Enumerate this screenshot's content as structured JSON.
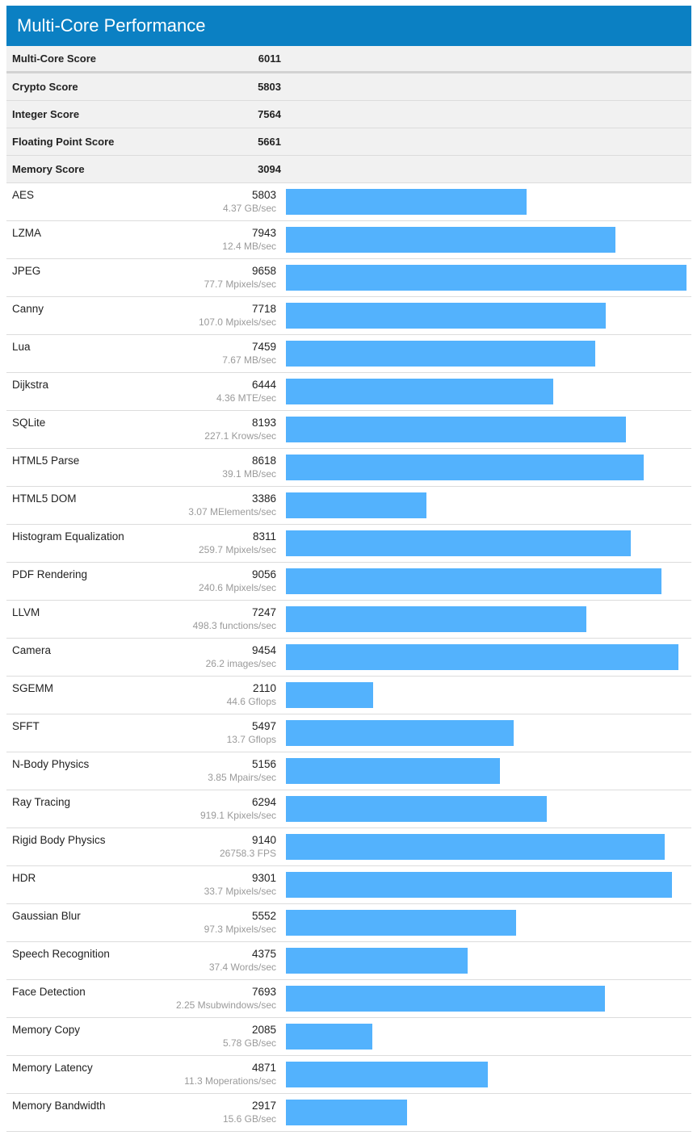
{
  "title": "Multi-Core Performance",
  "colors": {
    "header": "#0b80c3",
    "bar": "#53b2fd"
  },
  "summary": [
    {
      "label": "Multi-Core Score",
      "score": "6011"
    },
    {
      "label": "Crypto Score",
      "score": "5803"
    },
    {
      "label": "Integer Score",
      "score": "7564"
    },
    {
      "label": "Floating Point Score",
      "score": "5661"
    },
    {
      "label": "Memory Score",
      "score": "3094"
    }
  ],
  "chart_data": {
    "type": "bar",
    "max_value": 9658,
    "categories": [
      "AES",
      "LZMA",
      "JPEG",
      "Canny",
      "Lua",
      "Dijkstra",
      "SQLite",
      "HTML5 Parse",
      "HTML5 DOM",
      "Histogram Equalization",
      "PDF Rendering",
      "LLVM",
      "Camera",
      "SGEMM",
      "SFFT",
      "N-Body Physics",
      "Ray Tracing",
      "Rigid Body Physics",
      "HDR",
      "Gaussian Blur",
      "Speech Recognition",
      "Face Detection",
      "Memory Copy",
      "Memory Latency",
      "Memory Bandwidth"
    ],
    "values": [
      5803,
      7943,
      9658,
      7718,
      7459,
      6444,
      8193,
      8618,
      3386,
      8311,
      9056,
      7247,
      9454,
      2110,
      5497,
      5156,
      6294,
      9140,
      9301,
      5552,
      4375,
      7693,
      2085,
      4871,
      2917
    ],
    "rates": [
      "4.37 GB/sec",
      "12.4 MB/sec",
      "77.7 Mpixels/sec",
      "107.0 Mpixels/sec",
      "7.67 MB/sec",
      "4.36 MTE/sec",
      "227.1 Krows/sec",
      "39.1 MB/sec",
      "3.07 MElements/sec",
      "259.7 Mpixels/sec",
      "240.6 Mpixels/sec",
      "498.3 functions/sec",
      "26.2 images/sec",
      "44.6 Gflops",
      "13.7 Gflops",
      "3.85 Mpairs/sec",
      "919.1 Kpixels/sec",
      "26758.3 FPS",
      "33.7 Mpixels/sec",
      "97.3 Mpixels/sec",
      "37.4 Words/sec",
      "2.25 Msubwindows/sec",
      "5.78 GB/sec",
      "11.3 Moperations/sec",
      "15.6 GB/sec"
    ]
  }
}
